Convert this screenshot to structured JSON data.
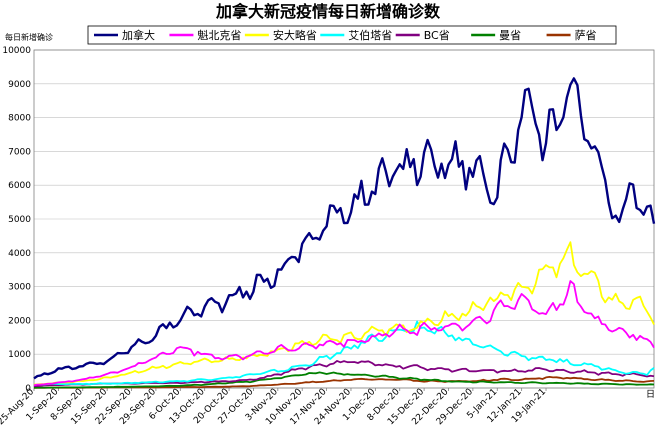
{
  "chart_data": {
    "type": "line",
    "title": "加拿大新冠疫情每日新增确诊数",
    "ylabel": "每日新增确诊",
    "xlabel": "",
    "ylim": [
      0,
      10000
    ],
    "yticks": [
      0,
      1000,
      2000,
      3000,
      4000,
      5000,
      6000,
      7000,
      8000,
      9000,
      10000
    ],
    "grid": true,
    "legend_position": "top",
    "x_start": "25-Aug-20",
    "x_end": "31-Jan-21",
    "x_ticks": [
      "25-Aug-20",
      "1-Sep-20",
      "8-Sep-20",
      "15-Sep-20",
      "22-Sep-20",
      "29-Sep-20",
      "6-Oct-20",
      "13-Oct-20",
      "20-Oct-20",
      "27-Oct-20",
      "3-Nov-20",
      "10-Nov-20",
      "17-Nov-20",
      "24-Nov-20",
      "1-Dec-20",
      "8-Dec-20",
      "15-Dec-20",
      "22-Dec-20",
      "29-Dec-20",
      "5-Jan-21",
      "12-Jan-21",
      "19-Jan-21"
    ],
    "x_axis_end_label": "日",
    "series": [
      {
        "name": "加拿大",
        "color": "#000080",
        "width": 2.4,
        "points": [
          [
            0,
            300
          ],
          [
            7,
            550
          ],
          [
            14,
            650
          ],
          [
            21,
            800
          ],
          [
            28,
            1200
          ],
          [
            35,
            1600
          ],
          [
            42,
            2100
          ],
          [
            49,
            2400
          ],
          [
            56,
            2600
          ],
          [
            63,
            3000
          ],
          [
            70,
            3400
          ],
          [
            77,
            4200
          ],
          [
            84,
            4900
          ],
          [
            91,
            5400
          ],
          [
            98,
            6000
          ],
          [
            105,
            6500
          ],
          [
            112,
            6800
          ],
          [
            119,
            6700
          ],
          [
            126,
            6600
          ],
          [
            133,
            5800
          ],
          [
            140,
            8200
          ],
          [
            147,
            7300
          ],
          [
            154,
            8700
          ],
          [
            161,
            6900
          ],
          [
            168,
            4800
          ],
          [
            172,
            5900
          ],
          [
            176,
            5200
          ],
          [
            178,
            4700
          ]
        ]
      },
      {
        "name": "魁北克省",
        "color": "#ff00ff",
        "width": 1.8,
        "points": [
          [
            0,
            80
          ],
          [
            7,
            160
          ],
          [
            14,
            250
          ],
          [
            21,
            400
          ],
          [
            28,
            600
          ],
          [
            35,
            900
          ],
          [
            42,
            1200
          ],
          [
            49,
            1000
          ],
          [
            56,
            900
          ],
          [
            63,
            1000
          ],
          [
            70,
            1150
          ],
          [
            77,
            1200
          ],
          [
            84,
            1300
          ],
          [
            91,
            1350
          ],
          [
            98,
            1500
          ],
          [
            105,
            1700
          ],
          [
            112,
            1750
          ],
          [
            119,
            1800
          ],
          [
            126,
            1900
          ],
          [
            133,
            2300
          ],
          [
            140,
            2600
          ],
          [
            147,
            2200
          ],
          [
            154,
            2900
          ],
          [
            161,
            2000
          ],
          [
            168,
            1700
          ],
          [
            172,
            1600
          ],
          [
            176,
            1400
          ],
          [
            178,
            1200
          ]
        ]
      },
      {
        "name": "安大略省",
        "color": "#ffff00",
        "width": 1.8,
        "points": [
          [
            0,
            100
          ],
          [
            7,
            150
          ],
          [
            14,
            200
          ],
          [
            21,
            300
          ],
          [
            28,
            450
          ],
          [
            35,
            600
          ],
          [
            42,
            750
          ],
          [
            49,
            800
          ],
          [
            56,
            850
          ],
          [
            63,
            950
          ],
          [
            70,
            1100
          ],
          [
            77,
            1300
          ],
          [
            84,
            1450
          ],
          [
            91,
            1500
          ],
          [
            98,
            1700
          ],
          [
            105,
            1800
          ],
          [
            112,
            1900
          ],
          [
            119,
            2100
          ],
          [
            126,
            2300
          ],
          [
            133,
            2600
          ],
          [
            140,
            3000
          ],
          [
            147,
            3400
          ],
          [
            154,
            3900
          ],
          [
            161,
            3100
          ],
          [
            168,
            2500
          ],
          [
            172,
            2600
          ],
          [
            176,
            2300
          ],
          [
            178,
            1900
          ]
        ]
      },
      {
        "name": "艾伯塔省",
        "color": "#00ffff",
        "width": 1.8,
        "points": [
          [
            0,
            100
          ],
          [
            7,
            120
          ],
          [
            14,
            120
          ],
          [
            21,
            130
          ],
          [
            28,
            150
          ],
          [
            35,
            180
          ],
          [
            42,
            200
          ],
          [
            49,
            250
          ],
          [
            56,
            300
          ],
          [
            63,
            400
          ],
          [
            70,
            500
          ],
          [
            77,
            650
          ],
          [
            84,
            900
          ],
          [
            91,
            1200
          ],
          [
            98,
            1500
          ],
          [
            105,
            1700
          ],
          [
            112,
            1800
          ],
          [
            119,
            1600
          ],
          [
            126,
            1300
          ],
          [
            133,
            1100
          ],
          [
            140,
            950
          ],
          [
            147,
            850
          ],
          [
            154,
            750
          ],
          [
            161,
            650
          ],
          [
            168,
            500
          ],
          [
            172,
            450
          ],
          [
            176,
            420
          ],
          [
            178,
            650
          ]
        ]
      },
      {
        "name": "BC省",
        "color": "#800080",
        "width": 1.8,
        "points": [
          [
            0,
            60
          ],
          [
            7,
            90
          ],
          [
            14,
            110
          ],
          [
            21,
            130
          ],
          [
            28,
            130
          ],
          [
            35,
            150
          ],
          [
            42,
            150
          ],
          [
            49,
            180
          ],
          [
            56,
            200
          ],
          [
            63,
            250
          ],
          [
            70,
            400
          ],
          [
            77,
            600
          ],
          [
            84,
            700
          ],
          [
            91,
            800
          ],
          [
            98,
            700
          ],
          [
            105,
            650
          ],
          [
            112,
            600
          ],
          [
            119,
            550
          ],
          [
            126,
            500
          ],
          [
            133,
            500
          ],
          [
            140,
            500
          ],
          [
            147,
            550
          ],
          [
            154,
            500
          ],
          [
            161,
            450
          ],
          [
            168,
            400
          ],
          [
            172,
            400
          ],
          [
            176,
            380
          ],
          [
            178,
            350
          ]
        ]
      },
      {
        "name": "曼省",
        "color": "#008000",
        "width": 1.8,
        "points": [
          [
            0,
            10
          ],
          [
            7,
            15
          ],
          [
            14,
            20
          ],
          [
            21,
            30
          ],
          [
            28,
            40
          ],
          [
            35,
            50
          ],
          [
            42,
            70
          ],
          [
            49,
            100
          ],
          [
            56,
            150
          ],
          [
            63,
            200
          ],
          [
            70,
            300
          ],
          [
            77,
            400
          ],
          [
            84,
            450
          ],
          [
            91,
            400
          ],
          [
            98,
            350
          ],
          [
            105,
            300
          ],
          [
            112,
            250
          ],
          [
            119,
            200
          ],
          [
            126,
            180
          ],
          [
            133,
            170
          ],
          [
            140,
            160
          ],
          [
            147,
            150
          ],
          [
            154,
            140
          ],
          [
            161,
            120
          ],
          [
            168,
            110
          ],
          [
            172,
            100
          ],
          [
            176,
            110
          ],
          [
            178,
            100
          ]
        ]
      },
      {
        "name": "萨省",
        "color": "#993300",
        "width": 1.8,
        "points": [
          [
            0,
            5
          ],
          [
            7,
            10
          ],
          [
            14,
            10
          ],
          [
            21,
            15
          ],
          [
            28,
            20
          ],
          [
            35,
            20
          ],
          [
            42,
            30
          ],
          [
            49,
            30
          ],
          [
            56,
            40
          ],
          [
            63,
            60
          ],
          [
            70,
            100
          ],
          [
            77,
            150
          ],
          [
            84,
            200
          ],
          [
            91,
            250
          ],
          [
            98,
            250
          ],
          [
            105,
            250
          ],
          [
            112,
            200
          ],
          [
            119,
            200
          ],
          [
            126,
            200
          ],
          [
            133,
            250
          ],
          [
            140,
            250
          ],
          [
            147,
            300
          ],
          [
            154,
            300
          ],
          [
            161,
            250
          ],
          [
            168,
            220
          ],
          [
            172,
            200
          ],
          [
            176,
            180
          ],
          [
            178,
            200
          ]
        ]
      }
    ]
  }
}
